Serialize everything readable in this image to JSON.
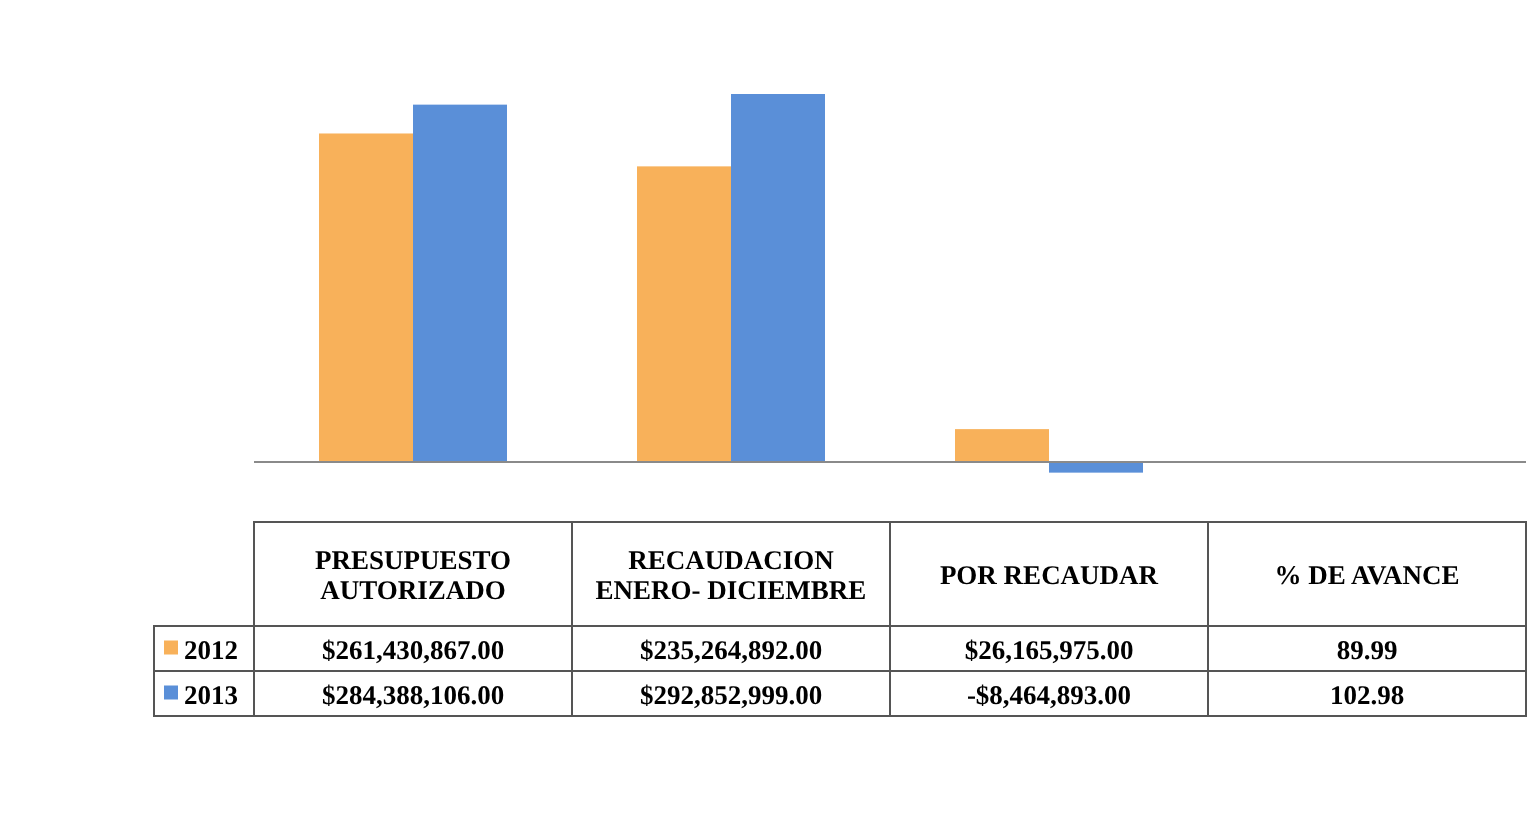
{
  "chart_data": {
    "type": "bar",
    "categories": [
      "PRESUPUESTO AUTORIZADO",
      "RECAUDACION ENERO- DICIEMBRE",
      "POR RECAUDAR",
      "% DE AVANCE"
    ],
    "relative": false,
    "series": [
      {
        "name": "2012",
        "color": "#f8b15a",
        "values": [
          261430867,
          235264892,
          26165975,
          89.99
        ],
        "value_labels": [
          "$261,430,867.00",
          "$235,264,892.00",
          "$26,165,975.00",
          "89.99"
        ]
      },
      {
        "name": "2013",
        "color": "#5a8fd8",
        "values": [
          284388106,
          292852999,
          -8464893,
          102.98
        ],
        "value_labels": [
          "$284,388,106.00",
          "$292,852,999.00",
          "-$8,464,893.00",
          "102.98"
        ]
      }
    ],
    "data_labels": false,
    "legend": "bottom left"
  }
}
